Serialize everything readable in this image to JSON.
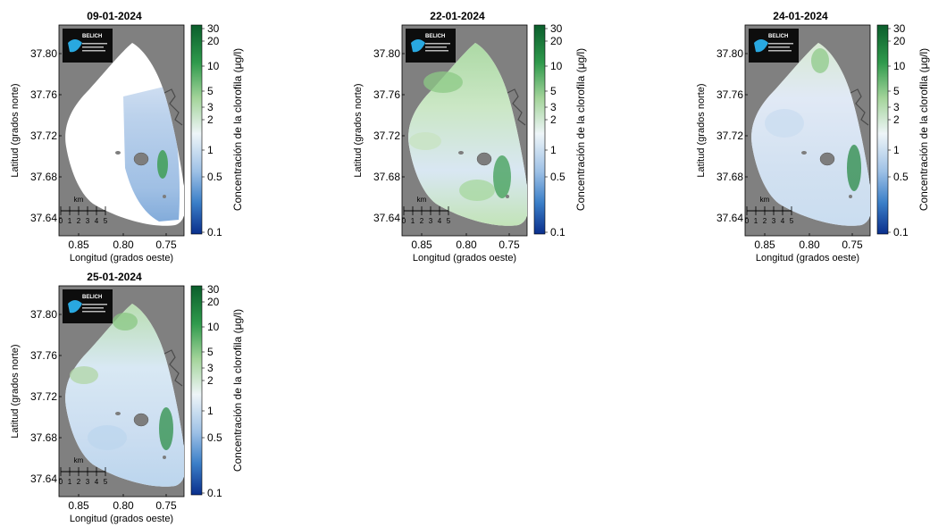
{
  "maps": [
    {
      "id": "p1",
      "date": "09-01-2024",
      "variant": "partial"
    },
    {
      "id": "p2",
      "date": "22-01-2024",
      "variant": "green"
    },
    {
      "id": "p3",
      "date": "24-01-2024",
      "variant": "light"
    },
    {
      "id": "p4",
      "date": "25-01-2024",
      "variant": "mixed"
    }
  ],
  "axes": {
    "ylabel": "Latitud (grados norte)",
    "xlabel": "Longitud (grados oeste)",
    "yticks": [
      "37.80",
      "37.76",
      "37.72",
      "37.68",
      "37.64"
    ],
    "xticks": [
      "0.85",
      "0.80",
      "0.75"
    ]
  },
  "colorbar": {
    "label": "Concentración de la clorofila (μg/l)",
    "ticks": [
      "30",
      "20",
      "10",
      "5",
      "3",
      "2",
      "1",
      "0.5",
      "0.1"
    ]
  },
  "scalebar": {
    "unit": "km",
    "ticks": [
      "0",
      "1",
      "2",
      "3",
      "4",
      "5"
    ]
  },
  "logo": {
    "text": "BELICH"
  },
  "colors": {
    "land": "#808080",
    "water_low": "#1f5fb0",
    "water_mid": "#dfe8f5",
    "water_high": "#1a7a3c"
  }
}
